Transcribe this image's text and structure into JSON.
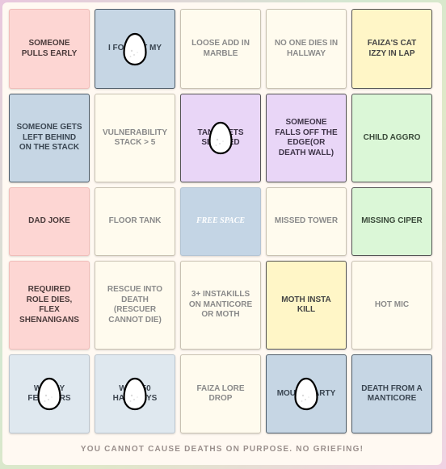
{
  "cells": [
    {
      "label": "SOMEONE PULLS EARLY",
      "color": "pink",
      "marked": false
    },
    {
      "label": "I FORGOT MY",
      "color": "blue",
      "marked": true
    },
    {
      "label": "LOOSE ADD IN MARBLE",
      "color": "cream",
      "marked": false
    },
    {
      "label": "NO ONE DIES IN HALLWAY",
      "color": "cream",
      "marked": false
    },
    {
      "label": "FAIZA'S CAT IZZY IN LAP",
      "color": "yellow",
      "marked": false
    },
    {
      "label": "SOMEONE GETS LEFT BEHIND ON THE STACK",
      "color": "blue",
      "marked": false
    },
    {
      "label": "VULNERABILITY STACK > 5",
      "color": "cream",
      "marked": false
    },
    {
      "label": "TANK GETS SLAPPED",
      "color": "purple",
      "marked": true
    },
    {
      "label": "SOMEONE FALLS OFF THE EDGE(OR DEATH WALL)",
      "color": "purple",
      "marked": false
    },
    {
      "label": "CHILD AGGRO",
      "color": "green",
      "marked": false
    },
    {
      "label": "DAD JOKE",
      "color": "pink",
      "marked": false
    },
    {
      "label": "FLOOR TANK",
      "color": "cream",
      "marked": false
    },
    {
      "label": "FREE SPACE",
      "color": "free",
      "marked": false
    },
    {
      "label": "MISSED TOWER",
      "color": "cream",
      "marked": false
    },
    {
      "label": "MISSING CIPER",
      "color": "green",
      "marked": false
    },
    {
      "label": "REQUIRED ROLE DIES, FLEX SHENANIGANS",
      "color": "pink",
      "marked": false
    },
    {
      "label": "RESCUE INTO DEATH (RESCUER CANNOT DIE)",
      "color": "cream",
      "marked": false
    },
    {
      "label": "3+ INSTAKILLS ON MANTICORE OR MOTH",
      "color": "cream",
      "marked": false
    },
    {
      "label": "MOTH INSTA KILL",
      "color": "yellow",
      "marked": false
    },
    {
      "label": "HOT MIC",
      "color": "cream",
      "marked": false
    },
    {
      "label": "WONKY FEATHERS",
      "color": "lightblue",
      "marked": true
    },
    {
      "label": "WIPE 50 HALLWAYS",
      "color": "lightblue",
      "marked": true
    },
    {
      "label": "FAIZA LORE DROP",
      "color": "cream",
      "marked": false
    },
    {
      "label": "MOUSE PARTY",
      "color": "blue",
      "marked": true
    },
    {
      "label": "DEATH FROM A MANTICORE",
      "color": "blue",
      "marked": false
    }
  ],
  "footer": "YOU CANNOT CAUSE DEATHS ON PURPOSE. NO GRIEFING!",
  "marker_icon": "egg-icon"
}
